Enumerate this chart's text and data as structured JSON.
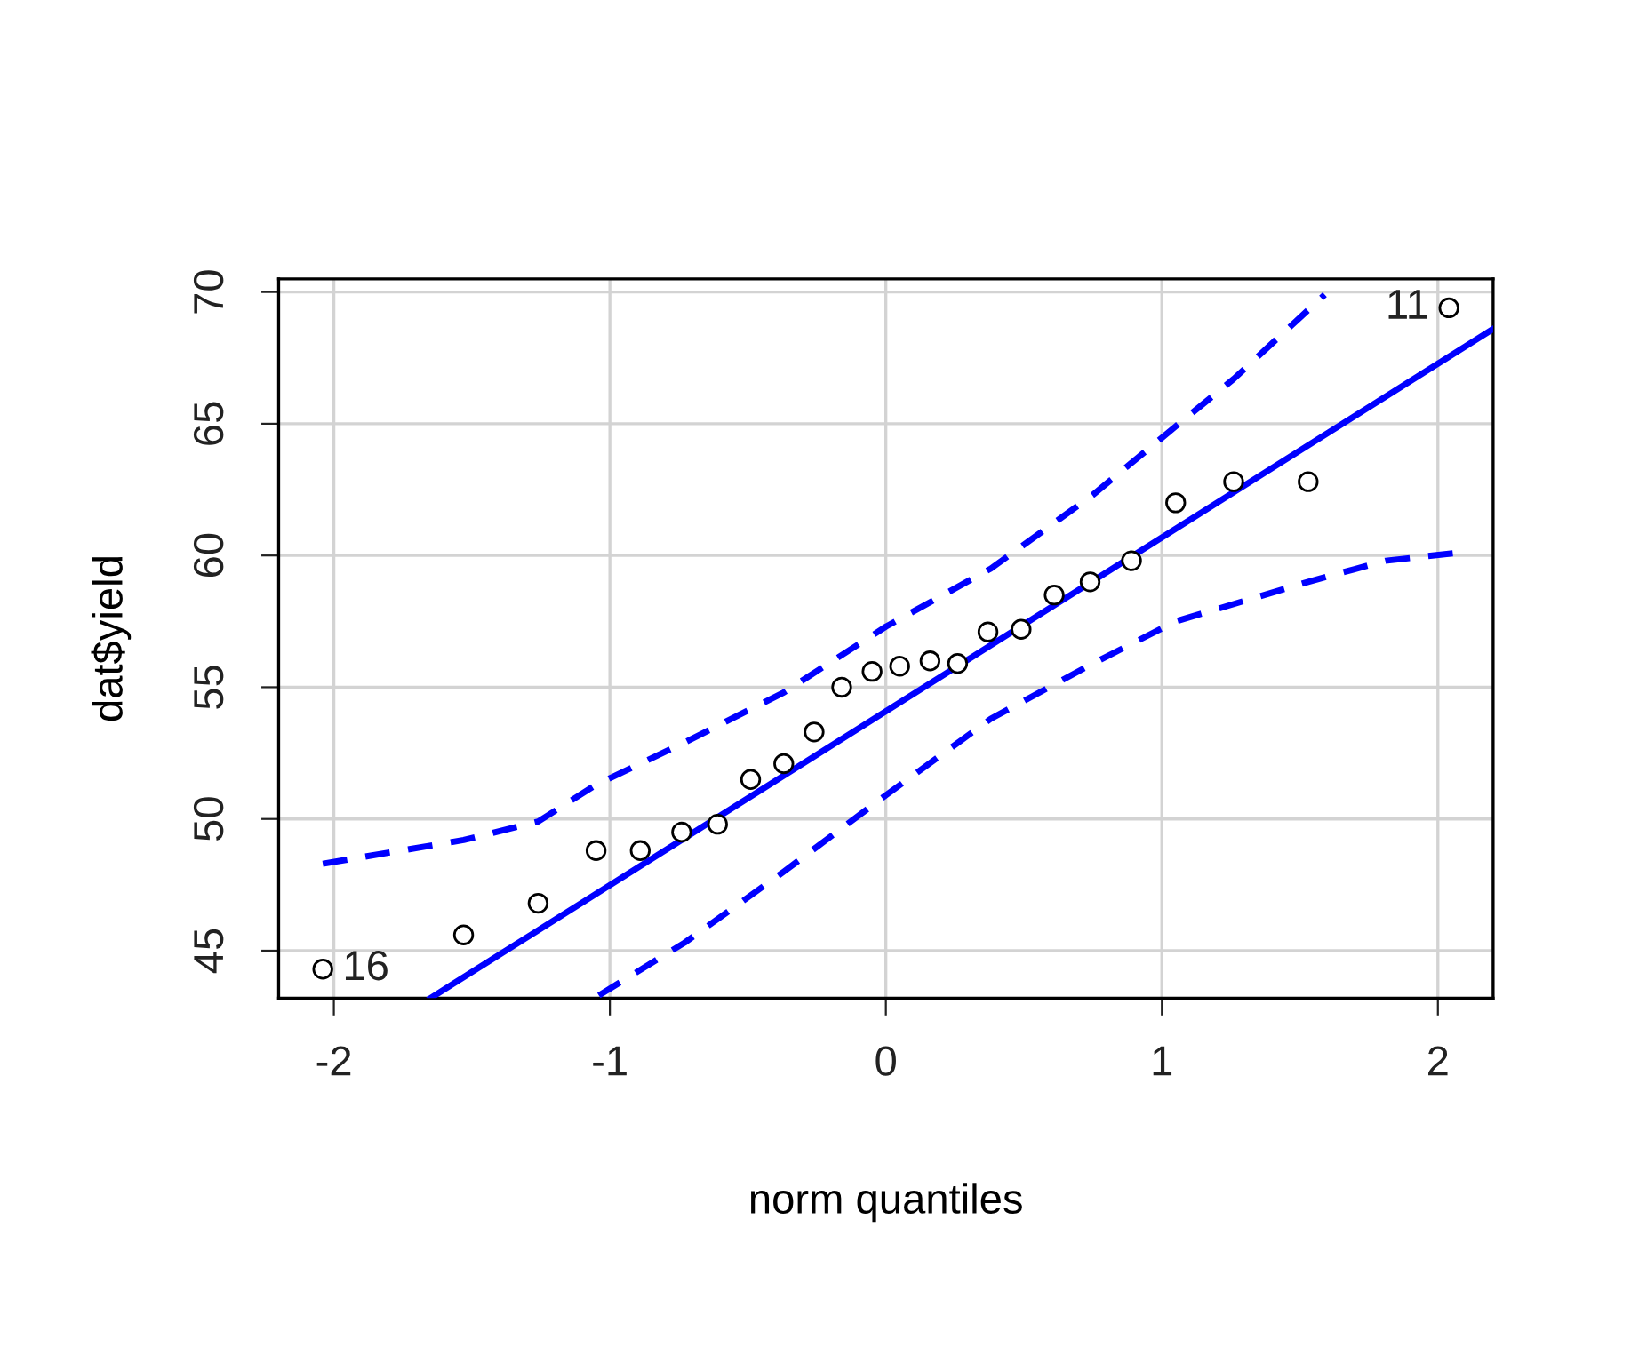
{
  "chart_data": {
    "type": "scatter",
    "xlabel": "norm quantiles",
    "ylabel": "dat$yield",
    "series": [
      {
        "color": "#000000",
        "marker": "circle",
        "x": [
          -2.04,
          -1.53,
          -1.26,
          -1.05,
          -0.89,
          -0.74,
          -0.61,
          -0.49,
          -0.37,
          -0.26,
          -0.16,
          -0.05,
          0.05,
          0.16,
          0.26,
          0.37,
          0.49,
          0.61,
          0.74,
          0.89,
          1.05,
          1.26,
          1.53,
          2.04
        ],
        "values": [
          44.3,
          45.6,
          46.8,
          48.8,
          48.8,
          49.5,
          49.8,
          51.5,
          52.1,
          53.3,
          55.0,
          55.6,
          55.8,
          56.0,
          55.9,
          57.1,
          57.2,
          58.5,
          59.0,
          59.8,
          62.0,
          62.8,
          62.8,
          69.4
        ]
      },
      {
        "type": "line",
        "color": "#0000ff",
        "line_style": "solid",
        "x": [
          -1.65,
          2.2
        ],
        "values": [
          43.2,
          68.6
        ]
      },
      {
        "type": "line",
        "color": "#0000ff",
        "line_style": "dashed",
        "x": [
          -2.04,
          -1.53,
          -1.26,
          -1.05,
          -0.73,
          -0.37,
          0,
          0.38,
          0.75,
          1.05,
          1.26,
          1.59
        ],
        "values": [
          48.3,
          49.2,
          49.9,
          51.3,
          52.9,
          54.8,
          57.3,
          59.5,
          62.3,
          64.9,
          66.7,
          69.9
        ]
      },
      {
        "type": "line",
        "color": "#0000ff",
        "line_style": "dashed",
        "x": [
          -1.04,
          -0.73,
          -0.37,
          0,
          0.38,
          0.75,
          1.05,
          1.53,
          1.81,
          2.07
        ],
        "values": [
          43.3,
          45.3,
          48.0,
          50.9,
          53.8,
          55.9,
          57.5,
          59.0,
          59.8,
          60.1
        ]
      }
    ],
    "annotations": [
      {
        "text": "16",
        "x": -2.04,
        "y": 44.3
      },
      {
        "text": "11",
        "x": 2.04,
        "y": 69.4
      }
    ],
    "xlim": [
      -2.2,
      2.2
    ],
    "ylim": [
      43.2,
      70.5
    ],
    "xticks": [
      -2,
      -1,
      0,
      1,
      2
    ],
    "yticks": [
      45,
      50,
      55,
      60,
      65,
      70
    ],
    "grid": true
  }
}
